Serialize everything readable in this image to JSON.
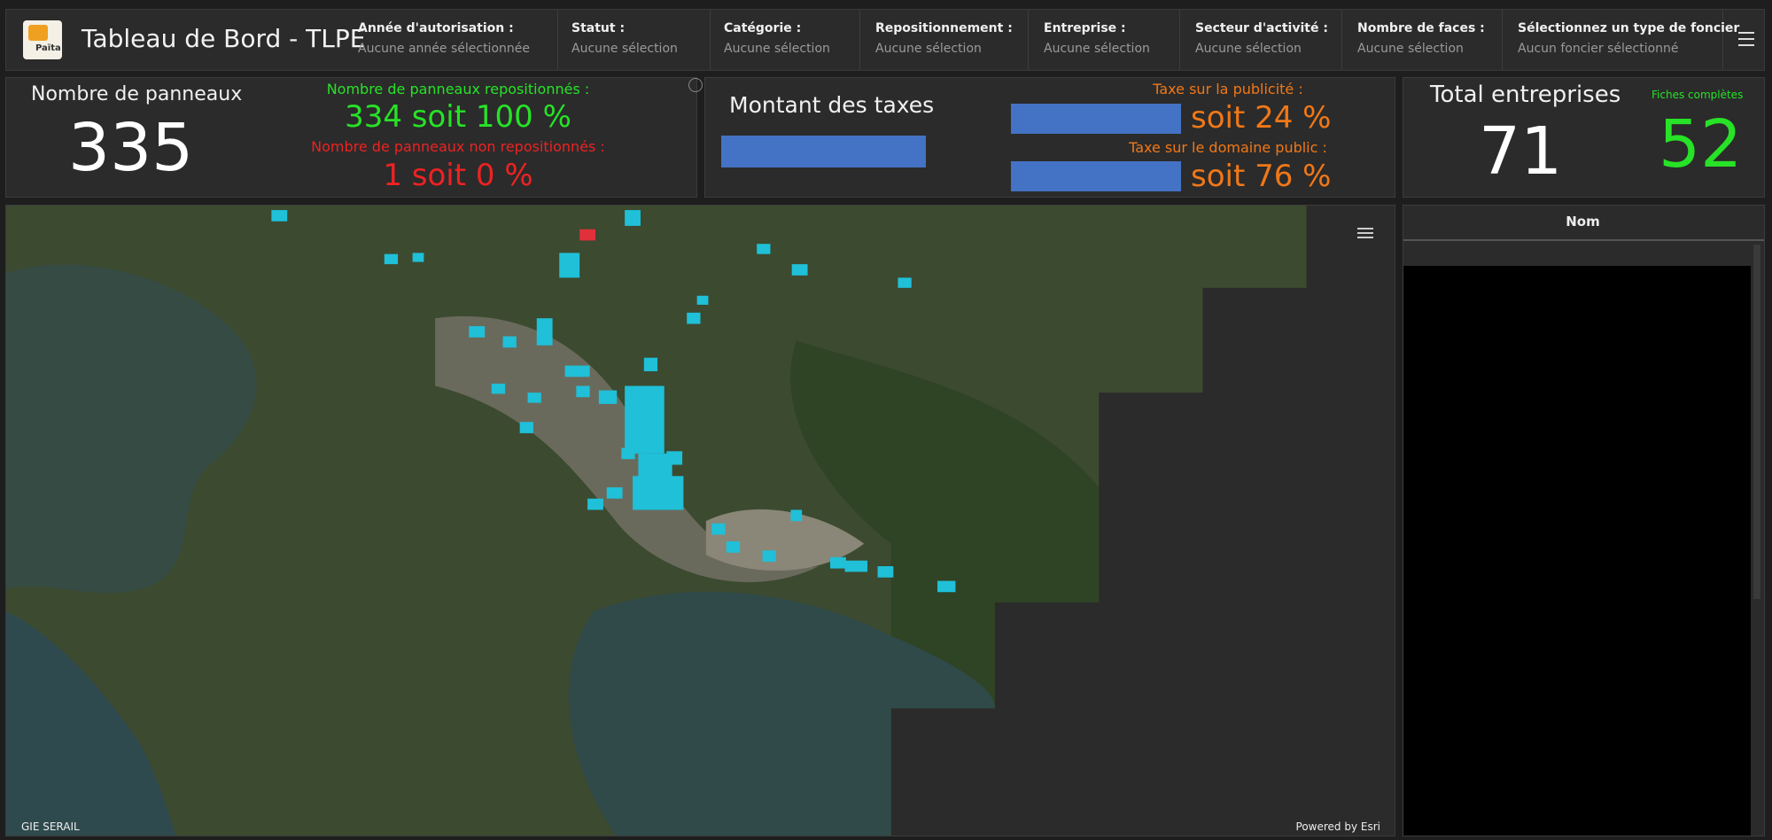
{
  "header": {
    "title": "Tableau de Bord - TLPE",
    "logo_text": "Païta"
  },
  "filters": [
    {
      "label": "Année d'autorisation :",
      "placeholder": "Aucune année sélectionnée"
    },
    {
      "label": "Statut :",
      "placeholder": "Aucune sélection"
    },
    {
      "label": "Catégorie :",
      "placeholder": "Aucune sélection"
    },
    {
      "label": "Repositionnement :",
      "placeholder": "Aucune sélection"
    },
    {
      "label": "Entreprise :",
      "placeholder": "Aucune sélection"
    },
    {
      "label": "Secteur d'activité :",
      "placeholder": "Aucune sélection"
    },
    {
      "label": "Nombre de faces :",
      "placeholder": "Aucune sélection"
    },
    {
      "label": "Sélectionnez un type de foncier",
      "placeholder": "Aucun foncier sélectionné"
    }
  ],
  "panels": {
    "panneaux": {
      "title": "Nombre de panneaux",
      "value": 335,
      "repositioned_label": "Nombre de panneaux repositionnés :",
      "repositioned_value": "334 soit 100 %",
      "not_repositioned_label": "Nombre de panneaux non repositionnés :",
      "not_repositioned_value": "1 soit 0 %"
    },
    "taxes": {
      "title": "Montant des taxes",
      "publicite_label": "Taxe sur la publicité :",
      "publicite_value": "soit 24 %",
      "domaine_label": "Taxe sur le domaine public :",
      "domaine_value": "soit 76 %"
    },
    "entreprises": {
      "title": "Total entreprises",
      "value": 71,
      "complete_label": "Fiches complètes",
      "complete_value": 52
    }
  },
  "map": {
    "attribution_left": "GIE SERAIL",
    "attribution_right": "Powered by Esri"
  },
  "table": {
    "header": "Nom"
  }
}
